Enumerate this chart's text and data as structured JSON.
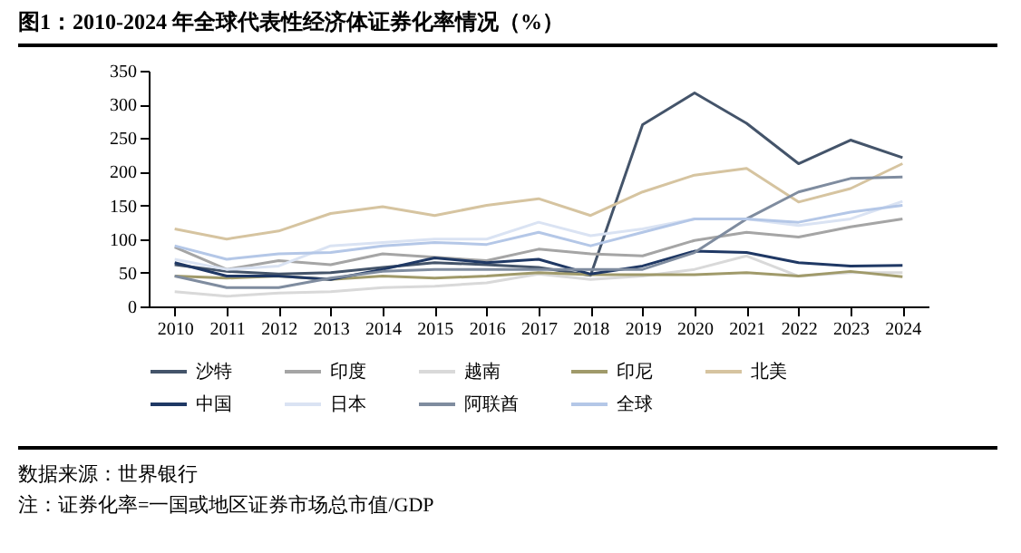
{
  "chart_data": {
    "type": "line",
    "title": "图1：2010-2024 年全球代表性经济体证券化率情况（%）",
    "categories": [
      "2010",
      "2011",
      "2012",
      "2013",
      "2014",
      "2015",
      "2016",
      "2017",
      "2018",
      "2019",
      "2020",
      "2021",
      "2022",
      "2023",
      "2024"
    ],
    "series": [
      {
        "name": "沙特",
        "color": "#44546a",
        "values": [
          62,
          52,
          48,
          50,
          58,
          65,
          62,
          58,
          46,
          270,
          317,
          272,
          212,
          247,
          221
        ]
      },
      {
        "name": "印度",
        "color": "#a5a5a5",
        "values": [
          88,
          55,
          68,
          62,
          78,
          73,
          68,
          85,
          78,
          75,
          98,
          110,
          103,
          118,
          130
        ]
      },
      {
        "name": "越南",
        "color": "#d9d9d9",
        "values": [
          22,
          15,
          20,
          22,
          28,
          30,
          35,
          48,
          40,
          45,
          55,
          75,
          45,
          50,
          50
        ]
      },
      {
        "name": "印尼",
        "color": "#a09a6a",
        "values": [
          45,
          42,
          45,
          40,
          45,
          42,
          45,
          50,
          47,
          47,
          47,
          50,
          45,
          52,
          44
        ]
      },
      {
        "name": "北美",
        "color": "#d6c4a0",
        "values": [
          115,
          100,
          112,
          138,
          148,
          135,
          150,
          160,
          135,
          170,
          195,
          205,
          155,
          175,
          212
        ]
      },
      {
        "name": "中国",
        "color": "#1f3864",
        "values": [
          65,
          45,
          45,
          40,
          55,
          72,
          65,
          70,
          48,
          60,
          82,
          80,
          65,
          60,
          61
        ]
      },
      {
        "name": "日本",
        "color": "#dae3f3",
        "values": [
          70,
          55,
          60,
          90,
          95,
          100,
          100,
          125,
          105,
          115,
          130,
          130,
          120,
          130,
          156
        ]
      },
      {
        "name": "阿联酋",
        "color": "#7f8c9f",
        "values": [
          45,
          28,
          28,
          42,
          52,
          55,
          55,
          55,
          55,
          55,
          80,
          130,
          170,
          190,
          192
        ]
      },
      {
        "name": "全球",
        "color": "#b4c7e7",
        "values": [
          90,
          70,
          78,
          80,
          90,
          95,
          92,
          110,
          90,
          110,
          130,
          130,
          125,
          140,
          150
        ]
      }
    ],
    "ylim": [
      0,
      350
    ],
    "yticks": [
      0,
      50,
      100,
      150,
      200,
      250,
      300,
      350
    ],
    "grid": false,
    "legend": "bottom",
    "annotations": [
      "数据来源：世界银行",
      "注：证券化率=一国或地区证券市场总市值/GDP"
    ]
  }
}
